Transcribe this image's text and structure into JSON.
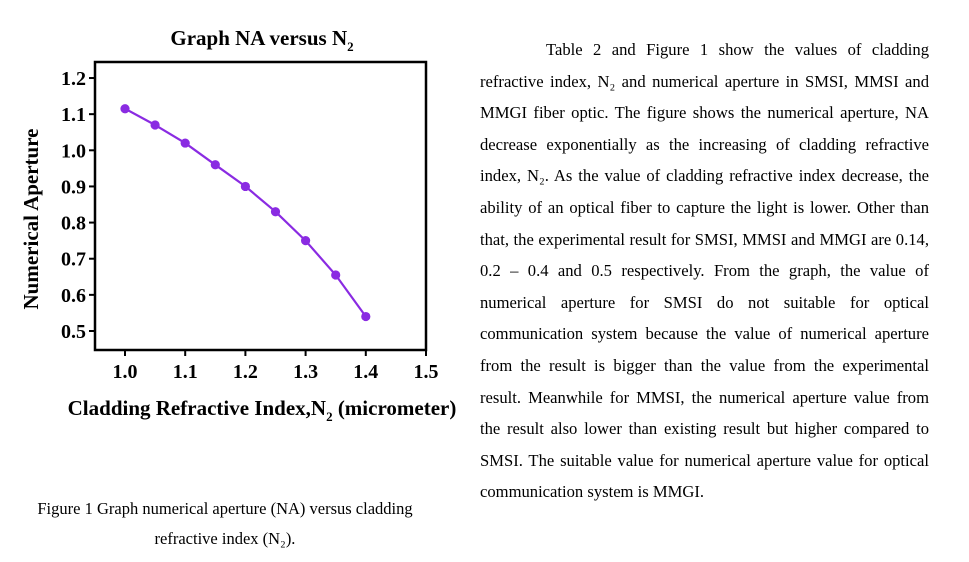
{
  "figure": {
    "caption_line1": "Figure 1 Graph numerical aperture (NA) versus cladding",
    "caption_line2": "refractive index (N₂)."
  },
  "chart_data": {
    "type": "line",
    "title": "Graph NA versus N",
    "title_subscript": "2",
    "xlabel": "Cladding Refractive Index,N",
    "xlabel_subscript": "2",
    "xlabel_suffix": " (micrometer)",
    "ylabel": "Numerical Aperture",
    "xlim": [
      0.95,
      1.5
    ],
    "ylim": [
      0.45,
      1.25
    ],
    "x_ticks": [
      "1.0",
      "1.1",
      "1.2",
      "1.3",
      "1.4",
      "1.5"
    ],
    "y_ticks": [
      "0.5",
      "0.6",
      "0.7",
      "0.8",
      "0.9",
      "1.0",
      "1.1",
      "1.2"
    ],
    "grid": false,
    "line_color": "#8a2be2",
    "series": [
      {
        "x": [
          1.0,
          1.05,
          1.1,
          1.15,
          1.2,
          1.25,
          1.3,
          1.35,
          1.4
        ],
        "y": [
          1.115,
          1.07,
          1.02,
          0.96,
          0.9,
          0.83,
          0.75,
          0.655,
          0.54
        ]
      }
    ]
  },
  "text": {
    "paragraph": "Table 2 and Figure 1 show the values of cladding refractive index, N₂ and numerical aperture in SMSI, MMSI and MMGI fiber optic. The figure shows the numerical aperture, NA decrease exponentially as the increasing of cladding refractive index, N₂. As the value of cladding refractive index decrease, the ability of an optical fiber to capture the light is lower. Other than that, the experimental result for SMSI, MMSI and MMGI are 0.14, 0.2 – 0.4 and 0.5 respectively. From the graph, the value of numerical aperture for SMSI do not suitable for optical communication system because the value of numerical aperture from the result is bigger than the value from the experimental result. Meanwhile for MMSI, the numerical aperture value from the result also lower than existing result but higher compared to SMSI. The suitable value for numerical aperture value for optical communication system is MMGI."
  }
}
